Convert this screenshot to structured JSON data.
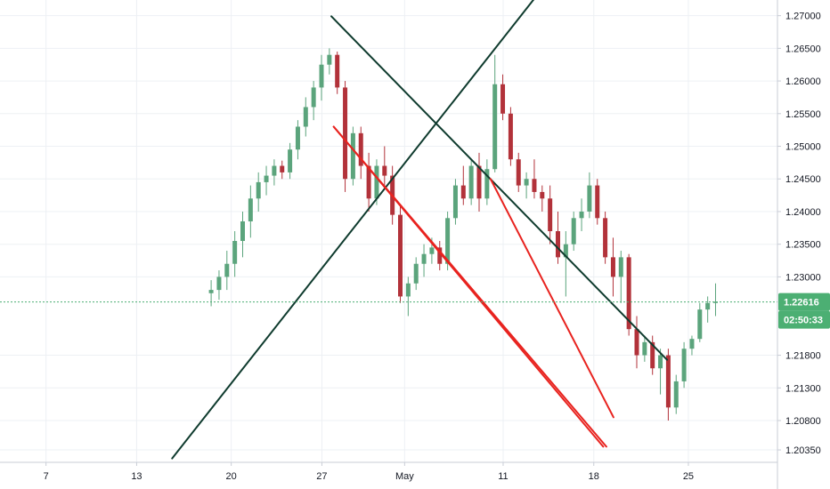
{
  "chart_data": {
    "type": "candlestick",
    "price_axis": {
      "ticks": [
        "1.27000",
        "1.26500",
        "1.26000",
        "1.25500",
        "1.25000",
        "1.24500",
        "1.24000",
        "1.23500",
        "1.23000",
        "1.21800",
        "1.21300",
        "1.20800",
        "1.20350"
      ],
      "tick_values": [
        1.27,
        1.265,
        1.26,
        1.255,
        1.25,
        1.245,
        1.24,
        1.235,
        1.23,
        1.218,
        1.213,
        1.208,
        1.2035
      ],
      "range": [
        1.2016,
        1.2724
      ]
    },
    "time_axis": {
      "labels": [
        "7",
        "13",
        "20",
        "27",
        "May",
        "11",
        "18",
        "25"
      ],
      "label_bars": [
        5.5,
        17,
        29,
        40.5,
        51,
        63.5,
        75,
        87
      ]
    },
    "current_price": {
      "label": "1.22616",
      "value": 1.22616,
      "countdown": "02:50:33",
      "color": "#4caf73"
    },
    "colors": {
      "up": "#5ba47c",
      "down": "#b2323a",
      "trendline_dark": "#0f3b2e",
      "channel_red": "#e8231f",
      "grid": "#edf0f4",
      "price_line": "#4caf73"
    },
    "trendlines": [
      {
        "name": "descending-resistance",
        "color": "#0f3b2e",
        "p1": [
          41.7,
          1.2699
        ],
        "p2": [
          84.3,
          1.2173
        ]
      },
      {
        "name": "ascending-support",
        "color": "#0f3b2e",
        "p1": [
          21.5,
          1.2022
        ],
        "p2": [
          70.0,
          1.2765
        ]
      },
      {
        "name": "channel-upper",
        "color": "#e8231f",
        "p1": [
          61.9,
          1.245
        ],
        "p2": [
          77.5,
          1.2085
        ]
      },
      {
        "name": "channel-lower",
        "color": "#e8231f",
        "p1": [
          42.0,
          1.253
        ],
        "p2": [
          76.2,
          1.204
        ]
      },
      {
        "name": "channel-inner",
        "color": "#e8231f",
        "p1": [
          42.0,
          1.253
        ],
        "p2": [
          76.6,
          1.204
        ]
      }
    ],
    "candles": [
      [
        1.2275,
        1.2295,
        1.2255,
        1.228
      ],
      [
        1.228,
        1.231,
        1.2265,
        1.23
      ],
      [
        1.23,
        1.234,
        1.228,
        1.232
      ],
      [
        1.232,
        1.237,
        1.23,
        1.2355
      ],
      [
        1.2355,
        1.24,
        1.233,
        1.2385
      ],
      [
        1.2385,
        1.244,
        1.236,
        1.242
      ],
      [
        1.242,
        1.246,
        1.24,
        1.2445
      ],
      [
        1.2445,
        1.247,
        1.2425,
        1.2455
      ],
      [
        1.2455,
        1.248,
        1.244,
        1.247
      ],
      [
        1.247,
        1.2478,
        1.245,
        1.246
      ],
      [
        1.246,
        1.2505,
        1.245,
        1.2495
      ],
      [
        1.2495,
        1.254,
        1.248,
        1.253
      ],
      [
        1.253,
        1.2575,
        1.2515,
        1.256
      ],
      [
        1.256,
        1.26,
        1.254,
        1.259
      ],
      [
        1.259,
        1.264,
        1.257,
        1.2625
      ],
      [
        1.2625,
        1.265,
        1.261,
        1.264
      ],
      [
        1.264,
        1.2645,
        1.258,
        1.259
      ],
      [
        1.259,
        1.26,
        1.243,
        1.245
      ],
      [
        1.245,
        1.253,
        1.244,
        1.252
      ],
      [
        1.252,
        1.253,
        1.245,
        1.247
      ],
      [
        1.247,
        1.249,
        1.24,
        1.242
      ],
      [
        1.242,
        1.248,
        1.241,
        1.247
      ],
      [
        1.247,
        1.25,
        1.244,
        1.2455
      ],
      [
        1.2455,
        1.247,
        1.238,
        1.2395
      ],
      [
        1.2395,
        1.241,
        1.226,
        1.227
      ],
      [
        1.227,
        1.23,
        1.224,
        1.229
      ],
      [
        1.229,
        1.233,
        1.228,
        1.232
      ],
      [
        1.232,
        1.235,
        1.23,
        1.2335
      ],
      [
        1.2335,
        1.236,
        1.232,
        1.2345
      ],
      [
        1.2345,
        1.2355,
        1.231,
        1.232
      ],
      [
        1.232,
        1.24,
        1.231,
        1.239
      ],
      [
        1.239,
        1.245,
        1.238,
        1.244
      ],
      [
        1.244,
        1.247,
        1.241,
        1.242
      ],
      [
        1.242,
        1.248,
        1.241,
        1.247
      ],
      [
        1.247,
        1.249,
        1.24,
        1.242
      ],
      [
        1.242,
        1.248,
        1.241,
        1.2465
      ],
      [
        1.2465,
        1.264,
        1.246,
        1.2595
      ],
      [
        1.2595,
        1.261,
        1.254,
        1.255
      ],
      [
        1.255,
        1.256,
        1.247,
        1.248
      ],
      [
        1.248,
        1.249,
        1.243,
        1.244
      ],
      [
        1.244,
        1.246,
        1.242,
        1.245
      ],
      [
        1.245,
        1.248,
        1.242,
        1.243
      ],
      [
        1.243,
        1.244,
        1.24,
        1.242
      ],
      [
        1.242,
        1.244,
        1.235,
        1.237
      ],
      [
        1.237,
        1.24,
        1.232,
        1.233
      ],
      [
        1.233,
        1.237,
        1.227,
        1.235
      ],
      [
        1.235,
        1.24,
        1.234,
        1.239
      ],
      [
        1.239,
        1.242,
        1.237,
        1.24
      ],
      [
        1.24,
        1.246,
        1.239,
        1.244
      ],
      [
        1.244,
        1.245,
        1.238,
        1.239
      ],
      [
        1.239,
        1.24,
        1.232,
        1.233
      ],
      [
        1.233,
        1.236,
        1.227,
        1.23
      ],
      [
        1.23,
        1.234,
        1.226,
        1.233
      ],
      [
        1.233,
        1.2335,
        1.221,
        1.222
      ],
      [
        1.222,
        1.224,
        1.216,
        1.218
      ],
      [
        1.218,
        1.221,
        1.217,
        1.22
      ],
      [
        1.22,
        1.221,
        1.215,
        1.216
      ],
      [
        1.216,
        1.219,
        1.212,
        1.218
      ],
      [
        1.218,
        1.219,
        1.208,
        1.21
      ],
      [
        1.21,
        1.215,
        1.209,
        1.214
      ],
      [
        1.214,
        1.22,
        1.213,
        1.219
      ],
      [
        1.219,
        1.221,
        1.218,
        1.2205
      ],
      [
        1.2205,
        1.226,
        1.22,
        1.225
      ],
      [
        1.225,
        1.227,
        1.223,
        1.226
      ],
      [
        1.226,
        1.229,
        1.224,
        1.2262
      ]
    ],
    "candle_bar_start": 26
  }
}
